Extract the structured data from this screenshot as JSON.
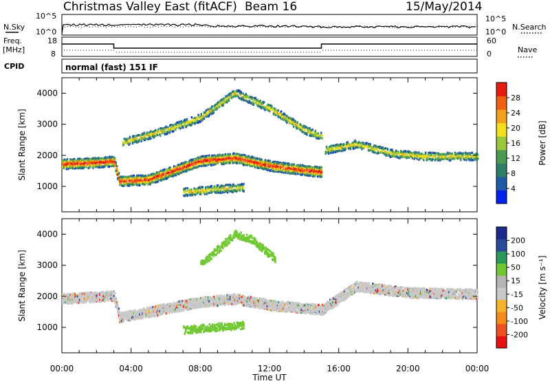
{
  "header": {
    "title": "Christmas Valley East (fitACF)",
    "beam": "Beam 16",
    "date": "15/May/2014"
  },
  "strip_labels": {
    "nsky": "N.Sky",
    "nsearch": "N.Search",
    "freq_line1": "Freq.",
    "freq_line2": "[MHz]",
    "nave": "Nave",
    "cpid": "CPID",
    "cpid_value": "normal (fast) 151 IF"
  },
  "noise_axis": {
    "left_ticks": [
      "10^5",
      "10^0"
    ],
    "right_ticks": [
      "10^5",
      "10^0"
    ]
  },
  "freq_axis": {
    "left_ticks": [
      "18",
      "8"
    ],
    "right_ticks": [
      "60",
      "0"
    ]
  },
  "colors": {
    "power": [
      "#0022ee",
      "#1e5aa6",
      "#2f7e6a",
      "#4a9a52",
      "#9cc63a",
      "#f2e020",
      "#f5a01a",
      "#f06010",
      "#e81c0c"
    ],
    "velocity": [
      "#e81010",
      "#f05020",
      "#f58a1a",
      "#f5b42a",
      "#c8c8c8",
      "#b4b4b4",
      "#70c830",
      "#2a9a5a",
      "#2a4a9a",
      "#1c2a90"
    ],
    "groundscatter": "#c0c0c0"
  },
  "chart_data": [
    {
      "type": "heatmap",
      "name": "power",
      "ylabel": "Slant Range [km]",
      "xlabel": "",
      "x_ticks": [
        "00:00",
        "04:00",
        "08:00",
        "12:00",
        "16:00",
        "20:00",
        "00:00"
      ],
      "x_range_hours": [
        0,
        24
      ],
      "y_ticks": [
        1000,
        2000,
        3000,
        4000
      ],
      "ylim": [
        180,
        4500
      ],
      "colorbar": {
        "label": "Power [dB]",
        "ticks": [
          "28",
          "24",
          "20",
          "16",
          "12",
          "8",
          "4"
        ]
      },
      "features": [
        {
          "desc": "main scatter band",
          "t": [
            0,
            2,
            3,
            3.3,
            5,
            8,
            10,
            12,
            14,
            15
          ],
          "range_km": [
            1700,
            1750,
            1800,
            1150,
            1200,
            1800,
            1900,
            1650,
            1500,
            1450
          ]
        },
        {
          "desc": "upper band morning",
          "t": [
            3.5,
            6,
            8,
            10,
            12,
            14,
            15
          ],
          "range_km": [
            2400,
            2800,
            3200,
            4000,
            3500,
            2800,
            2600
          ]
        },
        {
          "desc": "afternoon band",
          "t": [
            15.2,
            17,
            19,
            21,
            24
          ],
          "range_km": [
            2150,
            2350,
            2050,
            1950,
            1950
          ]
        },
        {
          "desc": "lower green patch",
          "t": [
            7,
            8,
            9,
            10.5
          ],
          "range_km": [
            800,
            850,
            900,
            950
          ]
        }
      ]
    },
    {
      "type": "heatmap",
      "name": "velocity",
      "ylabel": "Slant Range [km]",
      "xlabel": "Time UT",
      "x_ticks": [
        "00:00",
        "04:00",
        "08:00",
        "12:00",
        "16:00",
        "20:00",
        "00:00"
      ],
      "x_range_hours": [
        0,
        24
      ],
      "y_ticks": [
        1000,
        2000,
        3000,
        4000
      ],
      "ylim": [
        180,
        4500
      ],
      "colorbar": {
        "label": "Velocity [m s⁻¹]",
        "ticks": [
          "200",
          "100",
          "50",
          "15",
          "-15",
          "-50",
          "-100",
          "-200"
        ]
      },
      "features": [
        {
          "desc": "groundscatter band",
          "t": [
            0,
            3,
            3.3,
            8,
            10,
            12,
            15,
            17,
            20,
            24
          ],
          "range_km": [
            1900,
            2000,
            1300,
            1800,
            1900,
            1700,
            1550,
            2300,
            2100,
            2050
          ]
        },
        {
          "desc": "green upper arc",
          "t": [
            8,
            10,
            11,
            12.3
          ],
          "range_km": [
            3000,
            4000,
            3800,
            3200
          ]
        },
        {
          "desc": "green lower patch",
          "t": [
            7,
            8,
            9,
            10.5
          ],
          "range_km": [
            900,
            950,
            1000,
            1050
          ]
        }
      ]
    }
  ]
}
